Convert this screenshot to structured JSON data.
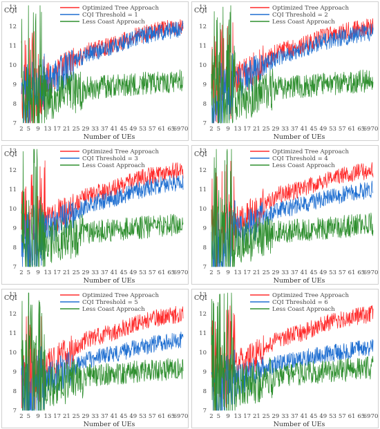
{
  "x_axis_label": "Number of UEs",
  "y_axis_label": "CQI",
  "colors": {
    "optimized": "#ff2a2a",
    "threshold": "#1f6fd1",
    "less": "#2f8f2f"
  },
  "chart_data": [
    {
      "type": "line",
      "title": "",
      "xlabel": "Number of UEs",
      "ylabel": "CQI",
      "xlim": [
        2,
        70
      ],
      "ylim": [
        7,
        13
      ],
      "x_ticks": [
        2,
        5,
        9,
        13,
        17,
        21,
        25,
        29,
        33,
        37,
        41,
        45,
        49,
        53,
        57,
        61,
        65,
        69,
        70
      ],
      "y_ticks": [
        7,
        8,
        9,
        10,
        11,
        12,
        13
      ],
      "legend": "top-right",
      "series": [
        {
          "name": "Optimized Tree Approach",
          "color": "#ff2a2a",
          "x": [
            2,
            10,
            20,
            30,
            40,
            50,
            60,
            70
          ],
          "y": [
            8.2,
            9.0,
            9.8,
            10.7,
            11.0,
            11.5,
            11.8,
            12.0
          ]
        },
        {
          "name": "CQI Threshold = 1",
          "color": "#1f6fd1",
          "x": [
            2,
            10,
            20,
            30,
            40,
            50,
            60,
            70
          ],
          "y": [
            8.0,
            8.9,
            9.7,
            10.6,
            10.9,
            11.4,
            11.7,
            11.9
          ]
        },
        {
          "name": "Less Coast Approach",
          "color": "#2f8f2f",
          "x": [
            2,
            10,
            20,
            30,
            40,
            50,
            60,
            70
          ],
          "y": [
            8.5,
            8.2,
            8.4,
            8.8,
            8.9,
            9.0,
            9.1,
            9.2
          ]
        }
      ]
    },
    {
      "type": "line",
      "title": "",
      "xlabel": "Number of UEs",
      "ylabel": "CQI",
      "xlim": [
        2,
        70
      ],
      "ylim": [
        7,
        13
      ],
      "x_ticks": [
        2,
        5,
        9,
        13,
        17,
        21,
        25,
        29,
        33,
        37,
        41,
        45,
        49,
        53,
        57,
        61,
        65,
        69,
        70
      ],
      "y_ticks": [
        7,
        8,
        9,
        10,
        11,
        12,
        13
      ],
      "legend": "top-right",
      "series": [
        {
          "name": "Optimized Tree Approach",
          "color": "#ff2a2a",
          "x": [
            2,
            10,
            20,
            30,
            40,
            50,
            60,
            70
          ],
          "y": [
            8.2,
            9.0,
            9.8,
            10.7,
            11.0,
            11.5,
            11.8,
            12.0
          ]
        },
        {
          "name": "CQI Threshold = 2",
          "color": "#1f6fd1",
          "x": [
            2,
            10,
            20,
            30,
            40,
            50,
            60,
            70
          ],
          "y": [
            8.0,
            8.8,
            9.6,
            10.4,
            10.8,
            11.2,
            11.5,
            11.7
          ]
        },
        {
          "name": "Less Coast Approach",
          "color": "#2f8f2f",
          "x": [
            2,
            10,
            20,
            30,
            40,
            50,
            60,
            70
          ],
          "y": [
            8.5,
            8.2,
            8.4,
            8.8,
            8.9,
            9.0,
            9.1,
            9.2
          ]
        }
      ]
    },
    {
      "type": "line",
      "title": "",
      "xlabel": "Number of UEs",
      "ylabel": "CQI",
      "xlim": [
        2,
        70
      ],
      "ylim": [
        7,
        13
      ],
      "x_ticks": [
        2,
        5,
        9,
        13,
        17,
        21,
        25,
        29,
        33,
        37,
        41,
        45,
        49,
        53,
        57,
        61,
        65,
        69,
        70
      ],
      "y_ticks": [
        7,
        8,
        9,
        10,
        11,
        12,
        13
      ],
      "legend": "top-right",
      "series": [
        {
          "name": "Optimized Tree Approach",
          "color": "#ff2a2a",
          "x": [
            2,
            10,
            20,
            30,
            40,
            50,
            60,
            70
          ],
          "y": [
            8.2,
            9.0,
            9.8,
            10.7,
            11.0,
            11.5,
            11.8,
            12.0
          ]
        },
        {
          "name": "CQI Threshold = 3",
          "color": "#1f6fd1",
          "x": [
            2,
            10,
            20,
            30,
            40,
            50,
            60,
            70
          ],
          "y": [
            7.9,
            8.7,
            9.4,
            10.2,
            10.5,
            10.9,
            11.2,
            11.4
          ]
        },
        {
          "name": "Less Coast Approach",
          "color": "#2f8f2f",
          "x": [
            2,
            10,
            20,
            30,
            40,
            50,
            60,
            70
          ],
          "y": [
            8.5,
            8.2,
            8.4,
            8.8,
            8.9,
            9.0,
            9.1,
            9.2
          ]
        }
      ]
    },
    {
      "type": "line",
      "title": "",
      "xlabel": "Number of UEs",
      "ylabel": "CQI",
      "xlim": [
        2,
        70
      ],
      "ylim": [
        7,
        13
      ],
      "x_ticks": [
        2,
        5,
        9,
        13,
        17,
        21,
        25,
        29,
        33,
        37,
        41,
        45,
        49,
        53,
        57,
        61,
        65,
        69,
        70
      ],
      "y_ticks": [
        7,
        8,
        9,
        10,
        11,
        12,
        13
      ],
      "legend": "top-right",
      "series": [
        {
          "name": "Optimized Tree Approach",
          "color": "#ff2a2a",
          "x": [
            2,
            10,
            20,
            30,
            40,
            50,
            60,
            70
          ],
          "y": [
            8.2,
            9.0,
            9.8,
            10.7,
            11.0,
            11.5,
            11.8,
            12.0
          ]
        },
        {
          "name": "CQI Threshold = 4",
          "color": "#1f6fd1",
          "x": [
            2,
            10,
            20,
            30,
            40,
            50,
            60,
            70
          ],
          "y": [
            7.9,
            8.6,
            9.2,
            9.9,
            10.2,
            10.5,
            10.8,
            11.0
          ]
        },
        {
          "name": "Less Coast Approach",
          "color": "#2f8f2f",
          "x": [
            2,
            10,
            20,
            30,
            40,
            50,
            60,
            70
          ],
          "y": [
            8.5,
            8.2,
            8.4,
            8.8,
            8.9,
            9.0,
            9.1,
            9.2
          ]
        }
      ]
    },
    {
      "type": "line",
      "title": "",
      "xlabel": "Number of UEs",
      "ylabel": "CQI",
      "xlim": [
        2,
        70
      ],
      "ylim": [
        7,
        13
      ],
      "x_ticks": [
        2,
        5,
        9,
        13,
        17,
        21,
        25,
        29,
        33,
        37,
        41,
        45,
        49,
        53,
        57,
        61,
        65,
        69,
        70
      ],
      "y_ticks": [
        7,
        8,
        9,
        10,
        11,
        12,
        13
      ],
      "legend": "top-right",
      "series": [
        {
          "name": "Optimized Tree Approach",
          "color": "#ff2a2a",
          "x": [
            2,
            10,
            20,
            30,
            40,
            50,
            60,
            70
          ],
          "y": [
            8.2,
            9.0,
            9.8,
            10.7,
            11.0,
            11.5,
            11.8,
            12.0
          ]
        },
        {
          "name": "CQI Threshold = 5",
          "color": "#1f6fd1",
          "x": [
            2,
            10,
            20,
            30,
            40,
            50,
            60,
            70
          ],
          "y": [
            7.8,
            8.5,
            9.0,
            9.6,
            9.9,
            10.2,
            10.5,
            10.7
          ]
        },
        {
          "name": "Less Coast Approach",
          "color": "#2f8f2f",
          "x": [
            2,
            10,
            20,
            30,
            40,
            50,
            60,
            70
          ],
          "y": [
            8.5,
            8.2,
            8.4,
            8.8,
            8.9,
            9.0,
            9.1,
            9.2
          ]
        }
      ]
    },
    {
      "type": "line",
      "title": "",
      "xlabel": "Number of UEs",
      "ylabel": "CQI",
      "xlim": [
        2,
        70
      ],
      "ylim": [
        7,
        13
      ],
      "x_ticks": [
        2,
        5,
        9,
        13,
        17,
        21,
        25,
        29,
        33,
        37,
        41,
        45,
        49,
        53,
        57,
        61,
        65,
        69,
        70
      ],
      "y_ticks": [
        7,
        8,
        9,
        10,
        11,
        12,
        13
      ],
      "legend": "top-right",
      "series": [
        {
          "name": "Optimized Tree Approach",
          "color": "#ff2a2a",
          "x": [
            2,
            10,
            20,
            30,
            40,
            50,
            60,
            70
          ],
          "y": [
            8.2,
            9.0,
            9.8,
            10.7,
            11.0,
            11.5,
            11.8,
            12.0
          ]
        },
        {
          "name": "CQI Threshold = 6",
          "color": "#1f6fd1",
          "x": [
            2,
            10,
            20,
            30,
            40,
            50,
            60,
            70
          ],
          "y": [
            7.8,
            8.4,
            8.9,
            9.4,
            9.7,
            9.9,
            10.1,
            10.3
          ]
        },
        {
          "name": "Less Coast Approach",
          "color": "#2f8f2f",
          "x": [
            2,
            10,
            20,
            30,
            40,
            50,
            60,
            70
          ],
          "y": [
            8.5,
            8.2,
            8.4,
            8.8,
            8.9,
            9.0,
            9.1,
            9.2
          ]
        }
      ]
    }
  ]
}
